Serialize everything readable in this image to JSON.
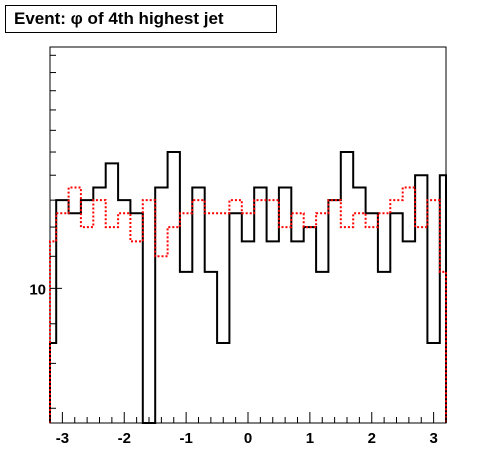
{
  "chart_data": {
    "type": "histogram",
    "title": "Event: φ of 4th highest jet",
    "xlabel": "",
    "ylabel": "",
    "x_range": [
      -3.2,
      3.2
    ],
    "y_log": true,
    "y_range": [
      6.7,
      20.5
    ],
    "x_ticks": [
      "-3",
      "-2",
      "-1",
      "0",
      "1",
      "2",
      "3"
    ],
    "x_tick_values": [
      -3,
      -2,
      -1,
      0,
      1,
      2,
      3
    ],
    "y_ticks": [
      "10"
    ],
    "y_tick_values": [
      10
    ],
    "grid": false,
    "legend": "none",
    "bin_edges": [
      -3.2,
      -3.1,
      -2.9,
      -2.7,
      -2.5,
      -2.3,
      -2.1,
      -1.9,
      -1.7,
      -1.5,
      -1.3,
      -1.1,
      -0.9,
      -0.7,
      -0.5,
      -0.3,
      -0.1,
      0.1,
      0.3,
      0.5,
      0.7,
      0.9,
      1.1,
      1.3,
      1.5,
      1.7,
      1.9,
      2.1,
      2.3,
      2.5,
      2.7,
      2.9,
      3.1,
      3.2
    ],
    "series": [
      {
        "color": "#000000",
        "style": "solid",
        "values": [
          8.5,
          13,
          12.5,
          13,
          13.5,
          14.5,
          13,
          12.5,
          6.7,
          13.5,
          15,
          10.5,
          13.5,
          10.5,
          8.5,
          12.5,
          11.5,
          13.5,
          11.5,
          13.5,
          11.5,
          12,
          10.5,
          13,
          15,
          13.5,
          12.5,
          10.5,
          12.5,
          11.5,
          14,
          8.5,
          14
        ]
      },
      {
        "color": "#ff0000",
        "style": "dotted",
        "values": [
          11.5,
          12.5,
          13.5,
          12,
          13,
          12,
          12.5,
          11.5,
          13,
          11,
          12,
          12.5,
          13,
          12.5,
          12.5,
          13,
          12.5,
          13,
          13,
          12,
          12.5,
          12,
          12.5,
          13,
          12,
          12.5,
          12,
          12.5,
          13,
          13.5,
          12,
          13,
          10.5
        ]
      }
    ]
  }
}
